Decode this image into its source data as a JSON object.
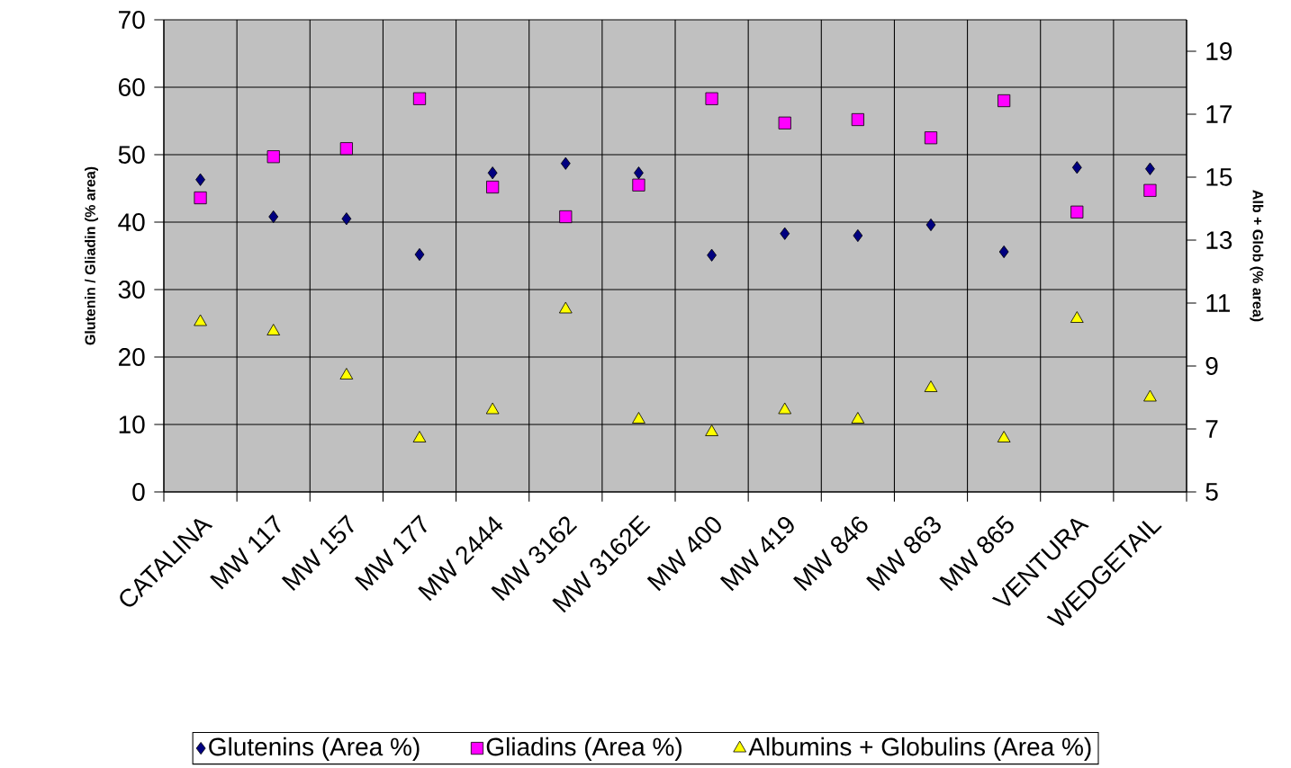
{
  "chart_data": {
    "type": "scatter",
    "categories": [
      "CATALINA",
      "MW 117",
      "MW 157",
      "MW 177",
      "MW 2444",
      "MW 3162",
      "MW 3162E",
      "MW 400",
      "MW 419",
      "MW 846",
      "MW 863",
      "MW 865",
      "VENTURA",
      "WEDGETAIL"
    ],
    "series": [
      {
        "name": "Glutenins (Area %)",
        "color": "#000080",
        "marker": "diamond",
        "values": [
          46.3,
          40.8,
          40.5,
          35.2,
          47.3,
          48.7,
          47.3,
          35.1,
          38.3,
          38.0,
          39.6,
          35.6,
          48.1,
          47.9
        ]
      },
      {
        "name": "Gliadins (Area %)",
        "color": "#ff00ff",
        "marker": "square",
        "values": [
          43.6,
          49.7,
          50.9,
          58.3,
          45.2,
          40.8,
          45.5,
          58.3,
          54.7,
          55.2,
          52.5,
          58.0,
          41.5,
          44.7
        ]
      },
      {
        "name": "Albumins + Globulins (Area %)",
        "color": "#ffff00",
        "marker": "triangle",
        "axis": "y2",
        "values": [
          10.4,
          10.1,
          8.7,
          6.7,
          7.6,
          10.8,
          7.3,
          6.9,
          7.6,
          7.3,
          8.3,
          6.7,
          10.5,
          8.0
        ]
      }
    ],
    "ylabel": "Glutenin / Gliadin (% area)",
    "y2label": "Alb + Glob (% area)",
    "ylim": [
      0,
      70
    ],
    "yticks": [
      0,
      10,
      20,
      30,
      40,
      50,
      60,
      70
    ],
    "y2lim": [
      5,
      20
    ],
    "y2ticks": [
      5,
      7,
      9,
      11,
      13,
      15,
      17,
      19
    ],
    "grid": true,
    "legend": "bottom"
  }
}
